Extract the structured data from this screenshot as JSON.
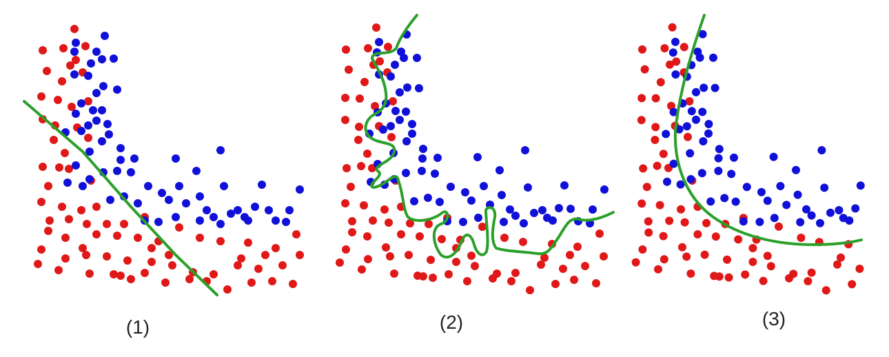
{
  "colors": {
    "class_a": "#e01818",
    "class_b": "#1010d8",
    "boundary": "#2aa02a"
  },
  "panels": [
    {
      "label": "(1)",
      "boundary_style": "linear"
    },
    {
      "label": "(2)",
      "boundary_style": "overfit-wiggly"
    },
    {
      "label": "(3)",
      "boundary_style": "smooth-curve"
    }
  ]
}
